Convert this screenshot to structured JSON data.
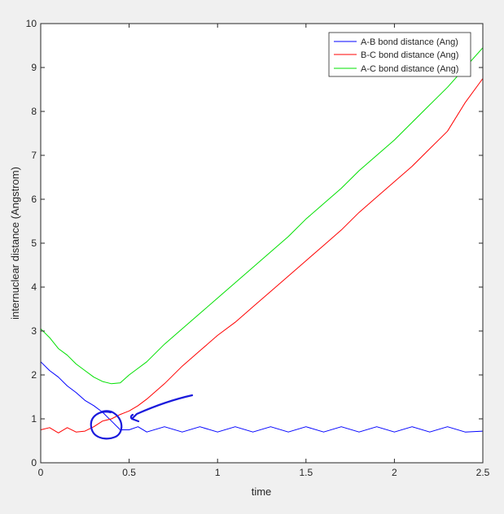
{
  "chart_data": {
    "type": "line",
    "title": "",
    "xlabel": "time",
    "ylabel": "internuclear distance (Angstrom)",
    "xlim": [
      0,
      2.5
    ],
    "ylim": [
      0,
      10
    ],
    "xticks": [
      0,
      0.5,
      1,
      1.5,
      2,
      2.5
    ],
    "xtick_labels": [
      "0",
      "0.5",
      "1",
      "1.5",
      "2",
      "2.5"
    ],
    "yticks": [
      0,
      1,
      2,
      3,
      4,
      5,
      6,
      7,
      8,
      9,
      10
    ],
    "ytick_labels": [
      "0",
      "1",
      "2",
      "3",
      "4",
      "5",
      "6",
      "7",
      "8",
      "9",
      "10"
    ],
    "grid": false,
    "legend": {
      "position": "top-right",
      "entries": [
        "A-B bond distance (Ang)",
        "B-C bond distance (Ang)",
        "A-C bond distance (Ang)"
      ]
    },
    "series": [
      {
        "name": "A-B bond distance (Ang)",
        "color": "#0000ff",
        "x": [
          0,
          0.05,
          0.1,
          0.15,
          0.2,
          0.25,
          0.3,
          0.35,
          0.4,
          0.45,
          0.5,
          0.55,
          0.6,
          0.7,
          0.8,
          0.9,
          1.0,
          1.1,
          1.2,
          1.3,
          1.4,
          1.5,
          1.6,
          1.7,
          1.8,
          1.9,
          2.0,
          2.1,
          2.2,
          2.3,
          2.4,
          2.5
        ],
        "y": [
          2.3,
          2.1,
          1.95,
          1.75,
          1.6,
          1.42,
          1.3,
          1.15,
          0.95,
          0.75,
          0.75,
          0.82,
          0.7,
          0.82,
          0.7,
          0.82,
          0.7,
          0.82,
          0.7,
          0.82,
          0.7,
          0.82,
          0.7,
          0.82,
          0.7,
          0.82,
          0.7,
          0.82,
          0.7,
          0.82,
          0.7,
          0.72
        ]
      },
      {
        "name": "B-C bond distance (Ang)",
        "color": "#ff0000",
        "x": [
          0,
          0.05,
          0.1,
          0.15,
          0.2,
          0.25,
          0.3,
          0.35,
          0.4,
          0.45,
          0.5,
          0.55,
          0.6,
          0.7,
          0.8,
          0.9,
          1.0,
          1.1,
          1.2,
          1.3,
          1.4,
          1.5,
          1.6,
          1.7,
          1.8,
          1.9,
          2.0,
          2.1,
          2.2,
          2.3,
          2.4,
          2.5
        ],
        "y": [
          0.75,
          0.8,
          0.68,
          0.8,
          0.7,
          0.72,
          0.82,
          0.95,
          1.0,
          1.1,
          1.18,
          1.3,
          1.45,
          1.8,
          2.2,
          2.55,
          2.9,
          3.2,
          3.55,
          3.9,
          4.25,
          4.6,
          4.95,
          5.3,
          5.7,
          6.05,
          6.4,
          6.75,
          7.15,
          7.55,
          8.2,
          8.75
        ]
      },
      {
        "name": "A-C bond distance (Ang)",
        "color": "#00e000",
        "x": [
          0,
          0.05,
          0.1,
          0.15,
          0.2,
          0.25,
          0.3,
          0.35,
          0.4,
          0.45,
          0.5,
          0.55,
          0.6,
          0.7,
          0.8,
          0.9,
          1.0,
          1.1,
          1.2,
          1.3,
          1.4,
          1.5,
          1.6,
          1.7,
          1.8,
          1.9,
          2.0,
          2.1,
          2.2,
          2.3,
          2.4,
          2.5
        ],
        "y": [
          3.05,
          2.85,
          2.6,
          2.45,
          2.25,
          2.1,
          1.95,
          1.85,
          1.8,
          1.82,
          2.0,
          2.15,
          2.3,
          2.7,
          3.05,
          3.4,
          3.75,
          4.1,
          4.45,
          4.8,
          5.15,
          5.55,
          5.9,
          6.25,
          6.65,
          7.0,
          7.35,
          7.75,
          8.15,
          8.55,
          9.0,
          9.45
        ]
      }
    ]
  },
  "annotations": {
    "circle_color": "#1a1adc",
    "arrow_color": "#1a1adc"
  }
}
